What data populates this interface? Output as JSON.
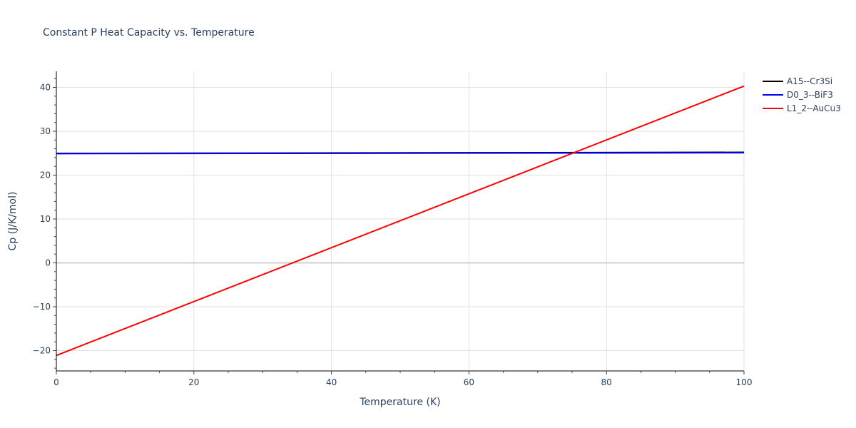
{
  "chart_data": {
    "type": "line",
    "title": "Constant P Heat Capacity vs. Temperature",
    "xlabel": "Temperature (K)",
    "ylabel": "Cp (J/K/mol)",
    "xlim": [
      0,
      100
    ],
    "ylim": [
      -24.5,
      43.5
    ],
    "x_ticks": [
      0,
      20,
      40,
      60,
      80,
      100
    ],
    "y_ticks": [
      -20,
      -10,
      0,
      10,
      20,
      30,
      40
    ],
    "y_tick_labels": [
      "−20",
      "−10",
      "0",
      "10",
      "20",
      "30",
      "40"
    ],
    "grid": true,
    "legend_position": "right-top",
    "series": [
      {
        "name": "A15--Cr3Si",
        "color": "#000000",
        "x": [
          0,
          100
        ],
        "values": [
          24.95,
          25.2
        ]
      },
      {
        "name": "D0_3--BiF3",
        "color": "#0000ff",
        "x": [
          0,
          100
        ],
        "values": [
          24.9,
          25.1
        ]
      },
      {
        "name": "L1_2--AuCu3",
        "color": "#ff0000",
        "x": [
          0,
          100
        ],
        "values": [
          -21.1,
          40.3
        ]
      }
    ]
  }
}
